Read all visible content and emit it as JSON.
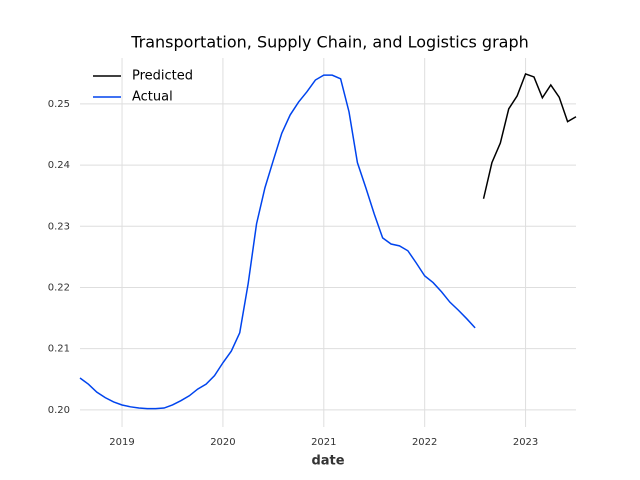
{
  "chart_data": {
    "type": "line",
    "title": "Transportation, Supply Chain, and Logistics graph",
    "x_label": "date",
    "x": [
      "2018-08",
      "2018-09",
      "2018-10",
      "2018-11",
      "2018-12",
      "2019-01",
      "2019-02",
      "2019-03",
      "2019-04",
      "2019-05",
      "2019-06",
      "2019-07",
      "2019-08",
      "2019-09",
      "2019-10",
      "2019-11",
      "2019-12",
      "2020-01",
      "2020-02",
      "2020-03",
      "2020-04",
      "2020-05",
      "2020-06",
      "2020-07",
      "2020-08",
      "2020-09",
      "2020-10",
      "2020-11",
      "2020-12",
      "2021-01",
      "2021-02",
      "2021-03",
      "2021-04",
      "2021-05",
      "2021-06",
      "2021-07",
      "2021-08",
      "2021-09",
      "2021-10",
      "2021-11",
      "2021-12",
      "2022-01",
      "2022-02",
      "2022-03",
      "2022-04",
      "2022-05",
      "2022-06",
      "2022-07",
      "2022-08",
      "2022-09",
      "2022-10",
      "2022-11",
      "2022-12",
      "2023-01",
      "2023-02",
      "2023-03",
      "2023-04",
      "2023-05",
      "2023-06",
      "2023-07"
    ],
    "series": [
      {
        "name": "Predicted",
        "color": "#000000",
        "values": [
          null,
          null,
          null,
          null,
          null,
          null,
          null,
          null,
          null,
          null,
          null,
          null,
          null,
          null,
          null,
          null,
          null,
          null,
          null,
          null,
          null,
          null,
          null,
          null,
          null,
          null,
          null,
          null,
          null,
          null,
          null,
          null,
          null,
          null,
          null,
          null,
          null,
          null,
          null,
          null,
          null,
          null,
          null,
          null,
          null,
          null,
          null,
          null,
          0.2345,
          0.2404,
          0.2436,
          0.2492,
          0.2513,
          0.2549,
          0.2544,
          0.251,
          0.2531,
          0.2511,
          0.2471,
          0.2479
        ]
      },
      {
        "name": "Actual",
        "color": "#0044ee",
        "values": [
          0.2052,
          0.2042,
          0.2029,
          0.202,
          0.2013,
          0.2008,
          0.2005,
          0.2003,
          0.2002,
          0.2002,
          0.2003,
          0.2008,
          0.2015,
          0.2023,
          0.2034,
          0.2042,
          0.2056,
          0.2077,
          0.2096,
          0.2126,
          0.2206,
          0.2304,
          0.2363,
          0.2408,
          0.2452,
          0.2482,
          0.2503,
          0.252,
          0.2539,
          0.2547,
          0.2547,
          0.2541,
          0.2487,
          0.2404,
          0.2363,
          0.232,
          0.2281,
          0.2271,
          0.2268,
          0.226,
          0.224,
          0.2219,
          0.2208,
          0.2193,
          0.2176,
          0.2163,
          0.2149,
          0.2134,
          null,
          null,
          null,
          null,
          null,
          null,
          null,
          null,
          null,
          null,
          null,
          null
        ]
      }
    ],
    "xlim": [
      "2018-08",
      "2023-07"
    ],
    "xticks": [
      {
        "value": "2019-01",
        "label": "2019"
      },
      {
        "value": "2020-01",
        "label": "2020"
      },
      {
        "value": "2021-01",
        "label": "2021"
      },
      {
        "value": "2022-01",
        "label": "2022"
      },
      {
        "value": "2023-01",
        "label": "2023"
      }
    ],
    "ylim": [
      0.1972,
      0.2575
    ],
    "yticks": [
      {
        "value": 0.2,
        "label": "0.20"
      },
      0.21,
      0.22,
      0.23,
      0.24,
      0.25
    ],
    "grid": true,
    "legend": "upper left"
  }
}
